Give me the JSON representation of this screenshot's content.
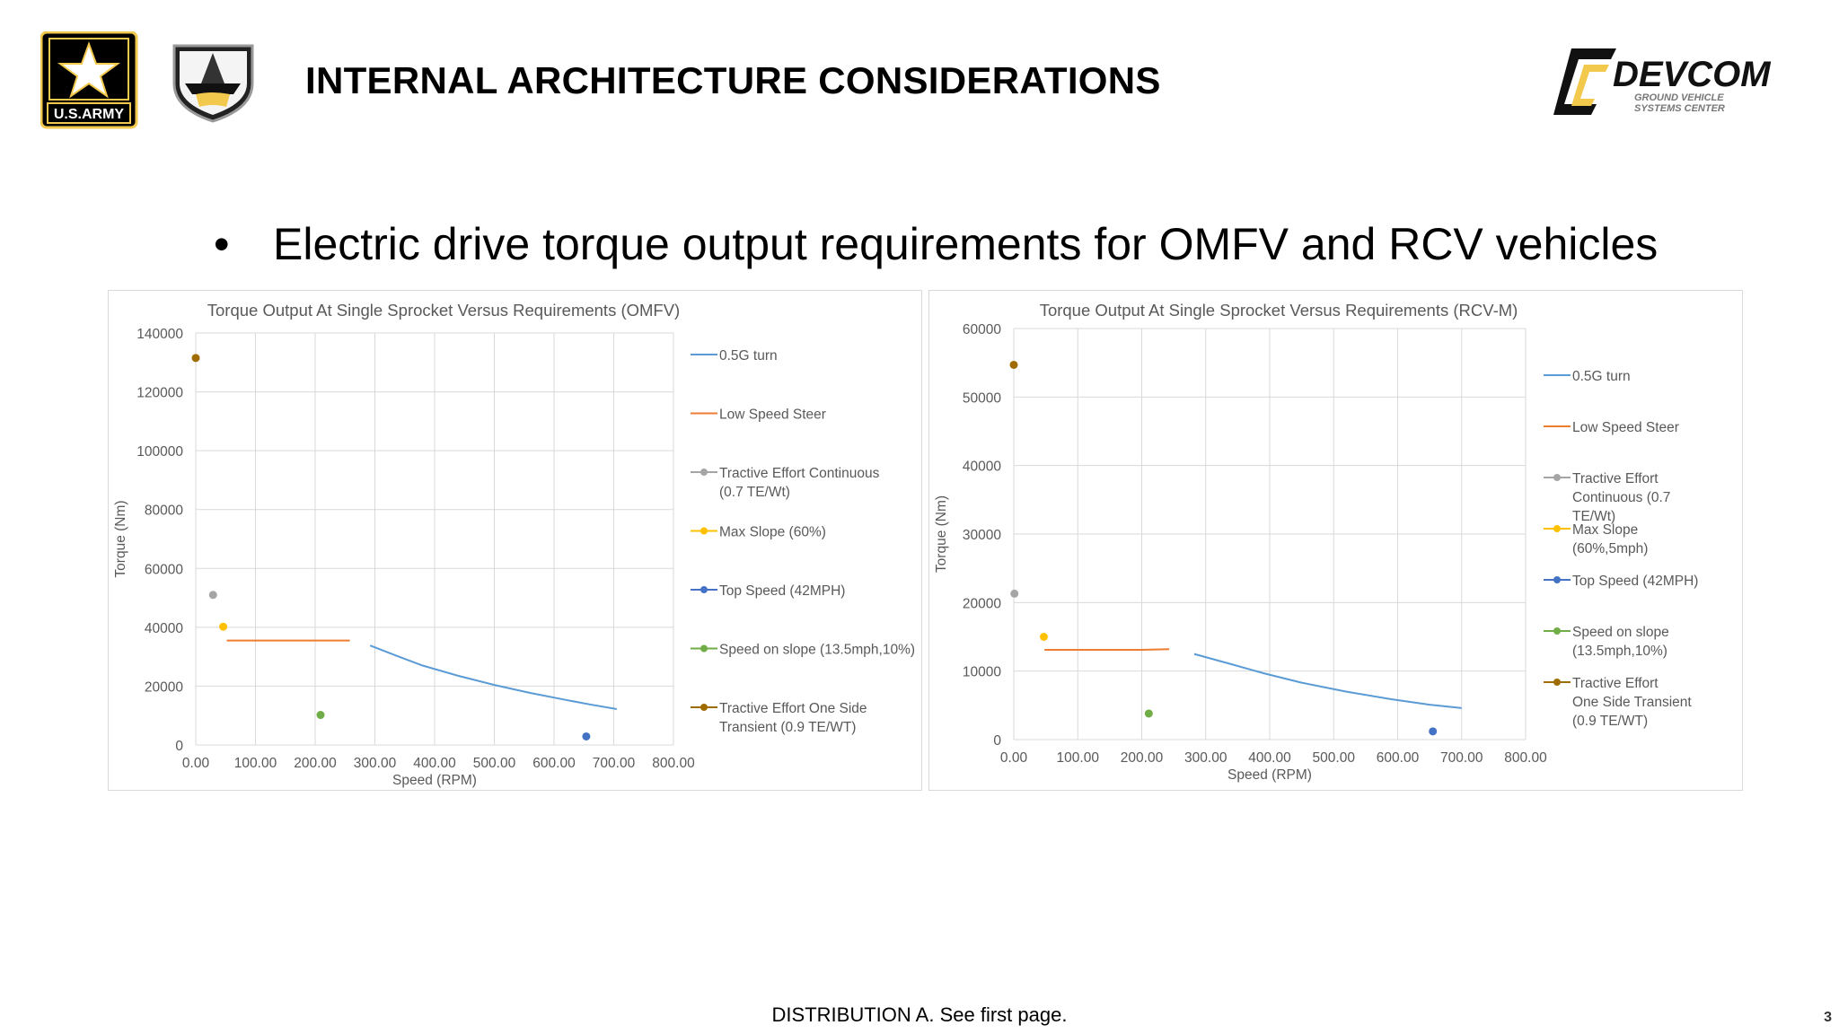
{
  "header": {
    "title": "INTERNAL ARCHITECTURE CONSIDERATIONS",
    "army_logo_text": "U.S.ARMY",
    "devcom_logo_text": "DEVCOM",
    "devcom_subtitle_1": "GROUND VEHICLE",
    "devcom_subtitle_2": "SYSTEMS CENTER"
  },
  "bullet": {
    "symbol": "•",
    "text": "Electric drive torque output requirements for OMFV and RCV vehicles"
  },
  "footer": {
    "distribution": "DISTRIBUTION A.  See first page.",
    "page_number": "3"
  },
  "colors": {
    "turn": "#5b9bd5",
    "steer": "#ed7d31",
    "continuous": "#a5a5a5",
    "slope": "#ffc000",
    "top_speed": "#4472c4",
    "speed_on_slope": "#70ad47",
    "transient": "#9e6c00"
  },
  "chart_data": [
    {
      "type": "line",
      "title": "Torque Output At Single Sprocket Versus Requirements (OMFV)",
      "xlabel": "Speed (RPM)",
      "ylabel": "Torque (Nm)",
      "xlim": [
        0,
        800
      ],
      "ylim": [
        0,
        140000
      ],
      "x_ticks": [
        "0.00",
        "100.00",
        "200.00",
        "300.00",
        "400.00",
        "500.00",
        "600.00",
        "700.00",
        "800.00"
      ],
      "y_ticks": [
        "0",
        "20000",
        "40000",
        "60000",
        "80000",
        "100000",
        "120000",
        "140000"
      ],
      "grid": true,
      "legend_position": "right",
      "series": [
        {
          "name": "0.5G turn",
          "kind": "line",
          "color_key": "turn",
          "points": [
            [
              292,
              33800
            ],
            [
              340,
              30000
            ],
            [
              380,
              27000
            ],
            [
              440,
              23500
            ],
            [
              500,
              20400
            ],
            [
              560,
              17700
            ],
            [
              620,
              15300
            ],
            [
              660,
              13800
            ],
            [
              705,
              12200
            ]
          ]
        },
        {
          "name": "Low Speed Steer",
          "kind": "line",
          "color_key": "steer",
          "points": [
            [
              52,
              35500
            ],
            [
              258,
              35500
            ]
          ]
        },
        {
          "name": "Tractive Effort Continuous (0.7 TE/Wt)",
          "kind": "point",
          "color_key": "continuous",
          "points": [
            [
              29,
              51000
            ]
          ]
        },
        {
          "name": "Max Slope (60%)",
          "kind": "point",
          "color_key": "slope",
          "points": [
            [
              46,
              40200
            ]
          ]
        },
        {
          "name": "Top Speed (42MPH)",
          "kind": "point",
          "color_key": "top_speed",
          "points": [
            [
              654,
              2900
            ]
          ]
        },
        {
          "name": "Speed on slope (13.5mph,10%)",
          "kind": "point",
          "color_key": "speed_on_slope",
          "points": [
            [
              209,
              10200
            ]
          ]
        },
        {
          "name": "Tractive Effort One Side Transient (0.9 TE/WT)",
          "kind": "point",
          "color_key": "transient",
          "points": [
            [
              0,
              131500
            ]
          ]
        }
      ]
    },
    {
      "type": "line",
      "title": "Torque Output At Single Sprocket Versus Requirements (RCV-M)",
      "xlabel": "Speed (RPM)",
      "ylabel": "Torque (Nm)",
      "xlim": [
        0,
        800
      ],
      "ylim": [
        0,
        60000
      ],
      "x_ticks": [
        "0.00",
        "100.00",
        "200.00",
        "300.00",
        "400.00",
        "500.00",
        "600.00",
        "700.00",
        "800.00"
      ],
      "y_ticks": [
        "0",
        "10000",
        "20000",
        "30000",
        "40000",
        "50000",
        "60000"
      ],
      "grid": true,
      "legend_position": "right",
      "series": [
        {
          "name": "0.5G turn",
          "kind": "line",
          "color_key": "turn",
          "points": [
            [
              282,
              12500
            ],
            [
              340,
              11000
            ],
            [
              390,
              9700
            ],
            [
              450,
              8300
            ],
            [
              520,
              7000
            ],
            [
              590,
              5900
            ],
            [
              650,
              5100
            ],
            [
              700,
              4600
            ]
          ]
        },
        {
          "name": "Low Speed Steer",
          "kind": "line",
          "color_key": "steer",
          "points": [
            [
              48,
              13100
            ],
            [
              200,
              13100
            ],
            [
              243,
              13200
            ]
          ]
        },
        {
          "name": "Tractive Effort Continuous (0.7 TE/Wt)",
          "kind": "point",
          "color_key": "continuous",
          "points": [
            [
              1,
              21300
            ]
          ]
        },
        {
          "name": "Max Slope (60%,5mph)",
          "kind": "point",
          "color_key": "slope",
          "points": [
            [
              47,
              15000
            ]
          ]
        },
        {
          "name": "Top Speed (42MPH)",
          "kind": "point",
          "color_key": "top_speed",
          "points": [
            [
              655,
              1200
            ]
          ]
        },
        {
          "name": "Speed on slope (13.5mph,10%)",
          "kind": "point",
          "color_key": "speed_on_slope",
          "points": [
            [
              211,
              3800
            ]
          ]
        },
        {
          "name": "Tractive Effort One Side Transient (0.9 TE/WT)",
          "kind": "point",
          "color_key": "transient",
          "points": [
            [
              0,
              54700
            ]
          ]
        }
      ]
    }
  ]
}
